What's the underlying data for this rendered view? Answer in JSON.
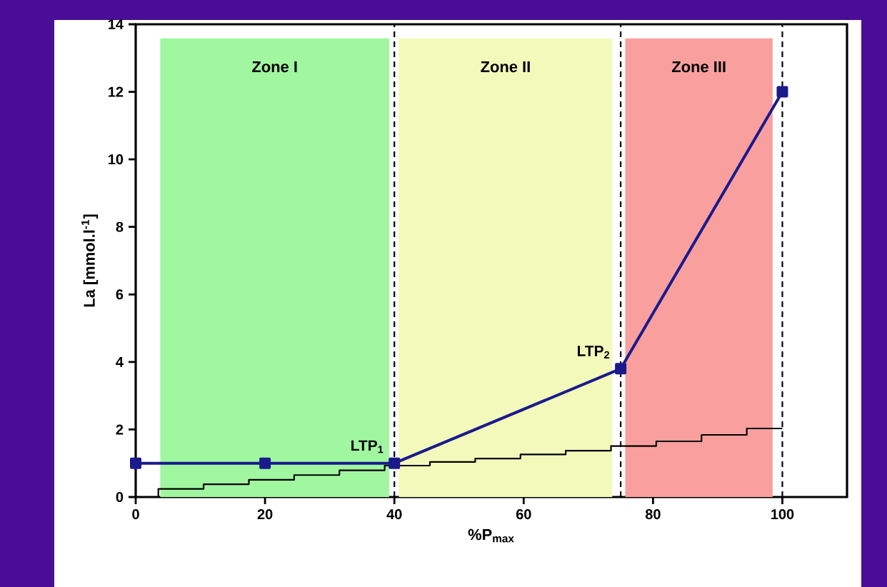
{
  "chart_data": {
    "type": "line",
    "xlabel": "%P$_{max}$",
    "ylabel": "La [mmol.l$^{-1}$]",
    "xlim": [
      0,
      110
    ],
    "ylim": [
      0,
      14
    ],
    "xticks": [
      0,
      20,
      40,
      60,
      80,
      100
    ],
    "yticks": [
      0,
      2,
      4,
      6,
      8,
      10,
      12,
      14
    ],
    "series": [
      {
        "type": "step",
        "color": "#000000",
        "marker": "none",
        "x": [
          3.5,
          3.5,
          10.5,
          17.5,
          24.5,
          31.5,
          38.5,
          45.5,
          52.5,
          59.5,
          66.5,
          73.5,
          80.5,
          87.5,
          94.5,
          100
        ],
        "values": [
          0,
          0.24,
          0.38,
          0.51,
          0.65,
          0.79,
          0.93,
          1.04,
          1.14,
          1.26,
          1.37,
          1.51,
          1.65,
          1.84,
          2.03,
          2.03
        ]
      },
      {
        "color": "#1a1a8c",
        "marker": "square",
        "x": [
          0,
          20,
          40,
          75,
          100
        ],
        "values": [
          1,
          1,
          1,
          3.8,
          12
        ]
      }
    ],
    "bands": [
      {
        "axis": "x",
        "from": 3.8,
        "to": 39.2,
        "label": "Zone I",
        "color": "#a0f7a0"
      },
      {
        "axis": "x",
        "from": 40.7,
        "to": 73.7,
        "label": "Zone II",
        "color": "#f3f9bb"
      },
      {
        "axis": "x",
        "from": 75.7,
        "to": 98.5,
        "label": "Zone III",
        "color": "#f9a09e"
      }
    ],
    "ref_lines": [
      {
        "axis": "x",
        "value": 40,
        "line_style": "dashed",
        "color": "#000000"
      },
      {
        "axis": "x",
        "value": 75,
        "line_style": "dashed",
        "color": "#000000"
      },
      {
        "axis": "x",
        "value": 100,
        "line_style": "dashed",
        "color": "#000000"
      }
    ],
    "annotations": [
      {
        "text": "LTP$_{1}$",
        "x": 40,
        "y": 1
      },
      {
        "text": "LTP$_{2}$",
        "x": 75,
        "y": 3.8
      }
    ]
  }
}
